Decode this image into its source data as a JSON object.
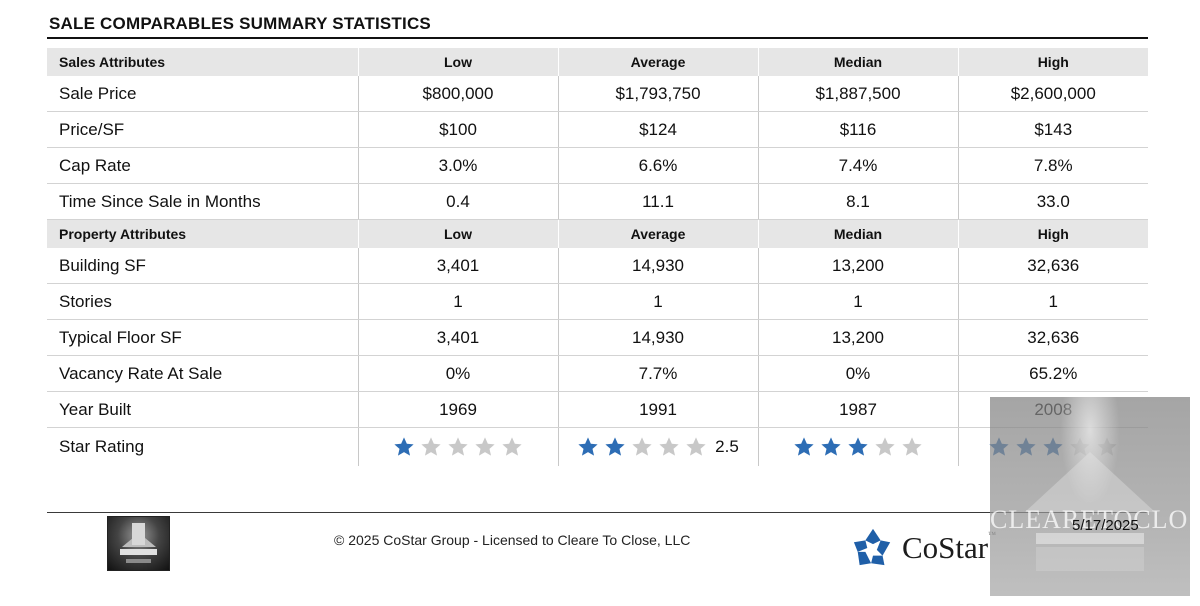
{
  "report": {
    "title": "SALE COMPARABLES SUMMARY STATISTICS"
  },
  "sales_section": {
    "header": [
      "Sales Attributes",
      "Low",
      "Average",
      "Median",
      "High"
    ],
    "rows": [
      [
        "Sale Price",
        "$800,000",
        "$1,793,750",
        "$1,887,500",
        "$2,600,000"
      ],
      [
        "Price/SF",
        "$100",
        "$124",
        "$116",
        "$143"
      ],
      [
        "Cap Rate",
        "3.0%",
        "6.6%",
        "7.4%",
        "7.8%"
      ],
      [
        "Time Since Sale in Months",
        "0.4",
        "11.1",
        "8.1",
        "33.0"
      ]
    ]
  },
  "property_section": {
    "header": [
      "Property Attributes",
      "Low",
      "Average",
      "Median",
      "High"
    ],
    "rows": [
      [
        "Building SF",
        "3,401",
        "14,930",
        "13,200",
        "32,636"
      ],
      [
        "Stories",
        "1",
        "1",
        "1",
        "1"
      ],
      [
        "Typical Floor SF",
        "3,401",
        "14,930",
        "13,200",
        "32,636"
      ],
      [
        "Vacancy Rate At Sale",
        "0%",
        "7.7%",
        "0%",
        "65.2%"
      ],
      [
        "Year Built",
        "1969",
        "1991",
        "1987",
        "2008"
      ]
    ],
    "star_rating": {
      "label": "Star Rating",
      "max_stars": 5,
      "filled_color": "#2d6db5",
      "empty_color": "#c8c8c8",
      "cells": [
        {
          "stars": 1,
          "value_label": ""
        },
        {
          "stars": 2,
          "value_label": "2.5"
        },
        {
          "stars": 3,
          "value_label": ""
        },
        {
          "stars": 3,
          "value_label": ""
        }
      ]
    }
  },
  "footer": {
    "copyright": "© 2025 CoStar Group - Licensed to Cleare To Close, LLC",
    "brand": "CoStar",
    "brand_tm": "™",
    "brand_color": "#1f5fa8",
    "date": "5/17/2025",
    "watermark_text": "CLEARETOCLOSE"
  }
}
